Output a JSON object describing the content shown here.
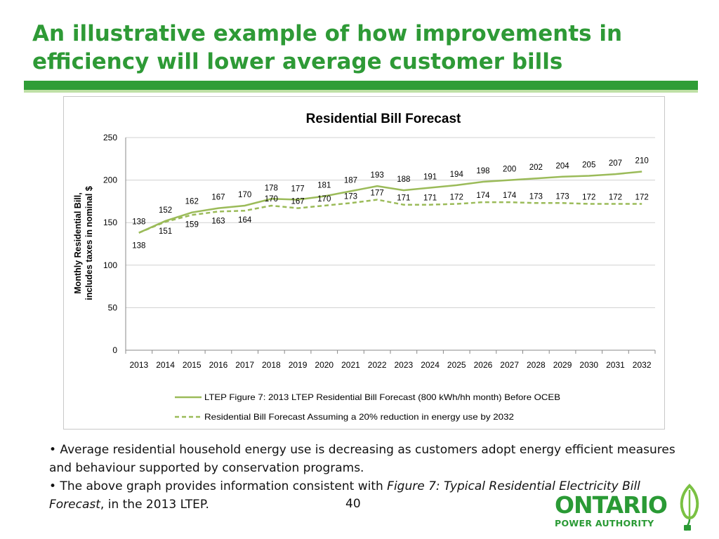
{
  "slide": {
    "title_lines": [
      "An illustrative example of how improvements in",
      "efficiency will lower average customer bills"
    ],
    "page_number": "40",
    "bullets": [
      {
        "prefix": "• Average residential household energy use is decreasing as customers adopt energy efficient measures and behaviour supported by conservation programs.",
        "italic": "",
        "suffix": ""
      },
      {
        "prefix": "• The above graph provides information consistent with ",
        "italic": "Figure 7:  Typical Residential Electricity Bill Forecast",
        "suffix": ", in the 2013 LTEP."
      }
    ],
    "logo": {
      "word1": "ONTARIO",
      "word2": "POWER AUTHORITY",
      "mark": "leaf-plug-icon"
    },
    "colors": {
      "title": "#2e9a36",
      "series_line": "#9bbb59",
      "rule": "#2f9d37"
    }
  },
  "chart_data": {
    "type": "line",
    "title": "Residential Bill Forecast",
    "ylabel_lines": [
      "Monthly Residential  Bill,",
      "includes taxes in nominal $"
    ],
    "xlabel": "",
    "ylim": [
      0,
      250
    ],
    "yticks": [
      0,
      50,
      100,
      150,
      200,
      250
    ],
    "grid": true,
    "legend_position": "bottom",
    "categories": [
      "2013",
      "2014",
      "2015",
      "2016",
      "2017",
      "2018",
      "2019",
      "2020",
      "2021",
      "2022",
      "2023",
      "2024",
      "2025",
      "2026",
      "2027",
      "2028",
      "2029",
      "2030",
      "2031",
      "2032"
    ],
    "series": [
      {
        "name": "LTEP Figure 7: 2013 LTEP Residential Bill Forecast (800 kWh/hh month) Before OCEB",
        "style": "solid",
        "color": "#9bbb59",
        "values": [
          138,
          152,
          162,
          167,
          170,
          178,
          177,
          181,
          187,
          193,
          188,
          191,
          194,
          198,
          200,
          202,
          204,
          205,
          207,
          210
        ]
      },
      {
        "name": "Residential Bill Forecast Assuming a 20% reduction in energy use by 2032",
        "style": "dashed",
        "color": "#9bbb59",
        "values": [
          138,
          151,
          159,
          163,
          164,
          170,
          167,
          170,
          173,
          177,
          171,
          171,
          172,
          174,
          174,
          173,
          173,
          172,
          172,
          172
        ]
      }
    ]
  }
}
